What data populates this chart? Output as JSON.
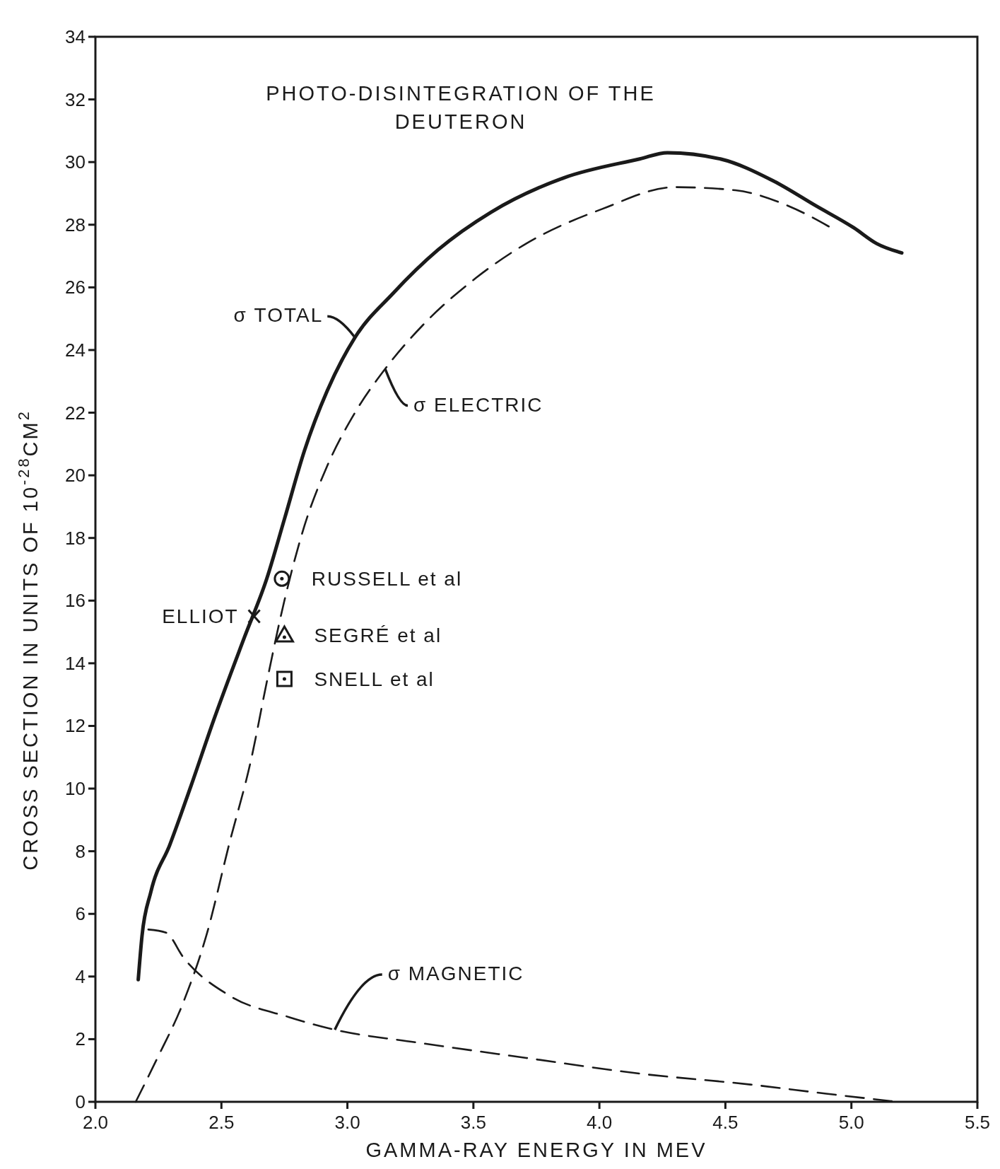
{
  "chart_data": {
    "type": "line",
    "title": "PHOTO-DISINTEGRATION OF THE DEUTERON",
    "xlabel": "GAMMA-RAY ENERGY IN MEV",
    "ylabel": "CROSS SECTION IN UNITS OF 10$^{-28}$CM$^{2}$",
    "xlim": [
      2.0,
      5.5
    ],
    "ylim": [
      0,
      34
    ],
    "xticks": [
      {
        "value": 2,
        "label": "2.0"
      },
      {
        "value": 2.5,
        "label": "2.5"
      },
      {
        "value": 3,
        "label": "3.0"
      },
      {
        "value": 3.5,
        "label": "3.5"
      },
      {
        "value": 4,
        "label": "4.0"
      },
      {
        "value": 4.5,
        "label": "4.5"
      },
      {
        "value": 5,
        "label": "5.0"
      },
      {
        "value": 5.5,
        "label": "5.5"
      }
    ],
    "yticks": [
      0,
      2,
      4,
      6,
      8,
      10,
      12,
      14,
      16,
      18,
      20,
      22,
      24,
      26,
      28,
      30,
      32,
      34
    ],
    "grid": false,
    "series": [
      {
        "name": "σ TOTAL",
        "color": "#1a1a1a",
        "line_style": "solid",
        "x": [
          2.17,
          2.185,
          2.22,
          2.295,
          2.38,
          2.47,
          2.59,
          2.68,
          2.75,
          2.83,
          2.92,
          3.03,
          3.18,
          3.36,
          3.57,
          3.86,
          4.16,
          4.27,
          4.48,
          4.69,
          4.86,
          5.01,
          5.1,
          5.2
        ],
        "values": [
          3.9,
          5.3,
          6.7,
          8.2,
          10.1,
          12.2,
          14.8,
          16.7,
          18.6,
          20.8,
          22.7,
          24.4,
          25.8,
          27.2,
          28.4,
          29.5,
          30.1,
          30.3,
          30.1,
          29.4,
          28.6,
          27.9,
          27.4,
          27.1
        ]
      },
      {
        "name": "σ ELECTRIC",
        "color": "#1a1a1a",
        "line_style": "dashed",
        "x": [
          2.16,
          2.24,
          2.35,
          2.44,
          2.53,
          2.62,
          2.68,
          2.75,
          2.83,
          2.92,
          3.03,
          3.15,
          3.3,
          3.51,
          3.71,
          4.01,
          4.3,
          4.54,
          4.75,
          4.92
        ],
        "values": [
          0,
          1.3,
          3.2,
          5.3,
          8.2,
          11.0,
          13.4,
          16.0,
          18.4,
          20.3,
          22.0,
          23.4,
          24.8,
          26.3,
          27.4,
          28.5,
          29.2,
          29.1,
          28.6,
          27.9
        ]
      },
      {
        "name": "σ MAGNETIC",
        "color": "#1a1a1a",
        "line_style": "dashed",
        "x": [
          2.21,
          2.28,
          2.35,
          2.53,
          2.77,
          2.95,
          3.27,
          3.71,
          4.16,
          4.6,
          4.9,
          5.16
        ],
        "values": [
          5.5,
          5.4,
          4.6,
          3.4,
          2.7,
          2.3,
          1.9,
          1.4,
          0.9,
          0.55,
          0.26,
          0.02
        ]
      },
      {
        "name": "RUSSELL et al",
        "type": "scatter",
        "marker": "circle",
        "color": "#1a1a1a",
        "x": [
          2.74
        ],
        "values": [
          16.7
        ]
      },
      {
        "name": "ELLIOT",
        "type": "scatter",
        "marker": "cross",
        "color": "#1a1a1a",
        "x": [
          2.63
        ],
        "values": [
          15.5
        ]
      },
      {
        "name": "SEGRÉ et al",
        "type": "scatter",
        "marker": "triangle",
        "color": "#1a1a1a",
        "x": [
          2.75
        ],
        "values": [
          14.9
        ]
      },
      {
        "name": "SNELL et al",
        "type": "scatter",
        "marker": "square",
        "color": "#1a1a1a",
        "x": [
          2.75
        ],
        "values": [
          13.5
        ]
      }
    ]
  }
}
